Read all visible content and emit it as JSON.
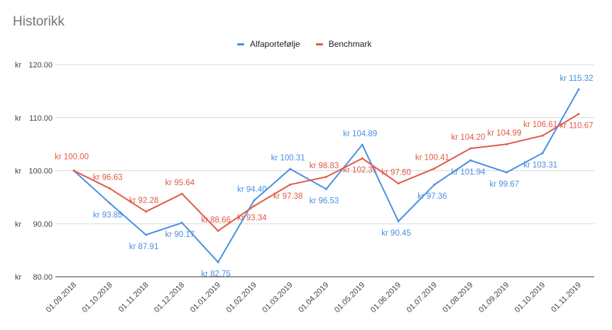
{
  "chart_data": {
    "type": "line",
    "title": "Historikk",
    "categories": [
      "01.09.2018",
      "01.10.2018",
      "01.11.2018",
      "01.12.2018",
      "01.01.2019",
      "01.02.2019",
      "01.03.2019",
      "01.04.2019",
      "01.05.2019",
      "01.06.2019",
      "01.07.2019",
      "01.08.2019",
      "01.09.2019",
      "01.10.2019",
      "01.11.2019"
    ],
    "y_ticks": [
      "kr  80.00",
      "kr  90.00",
      "kr  100.00",
      "kr  110.00",
      "kr  120.00"
    ],
    "ylim": [
      80,
      120
    ],
    "grid": true,
    "legend_position": "top",
    "series": [
      {
        "name": "Alfaportefølje",
        "color": "#4a90e2",
        "values": [
          100.0,
          93.85,
          87.91,
          90.17,
          82.75,
          94.4,
          100.31,
          96.53,
          104.89,
          90.45,
          97.36,
          101.94,
          99.67,
          103.31,
          115.32
        ],
        "labels": [
          "",
          "kr  93.85",
          "kr  87.91",
          "kr  90.17",
          "kr  82.75",
          "kr  94.40",
          "kr  100.31",
          "kr  96.53",
          "kr  104.89",
          "kr  90.45",
          "kr  97.36",
          "kr  101.94",
          "kr  99.67",
          "kr  103.31",
          "kr  115.32"
        ]
      },
      {
        "name": "Benchmark",
        "color": "#e05a47",
        "values": [
          100.0,
          96.63,
          92.28,
          95.64,
          88.66,
          93.34,
          97.38,
          98.83,
          102.31,
          97.6,
          100.41,
          104.2,
          104.99,
          106.61,
          110.67
        ],
        "labels": [
          "kr  100.00",
          "kr  96.63",
          "kr  92.28",
          "kr  95.64",
          "kr  88.66",
          "kr  93.34",
          "kr  97.38",
          "kr  98.83",
          "kr  102.31",
          "kr  97.60",
          "kr  100.41",
          "kr  104.20",
          "kr  104.99",
          "kr  106.61",
          "kr  110.67"
        ]
      }
    ]
  }
}
